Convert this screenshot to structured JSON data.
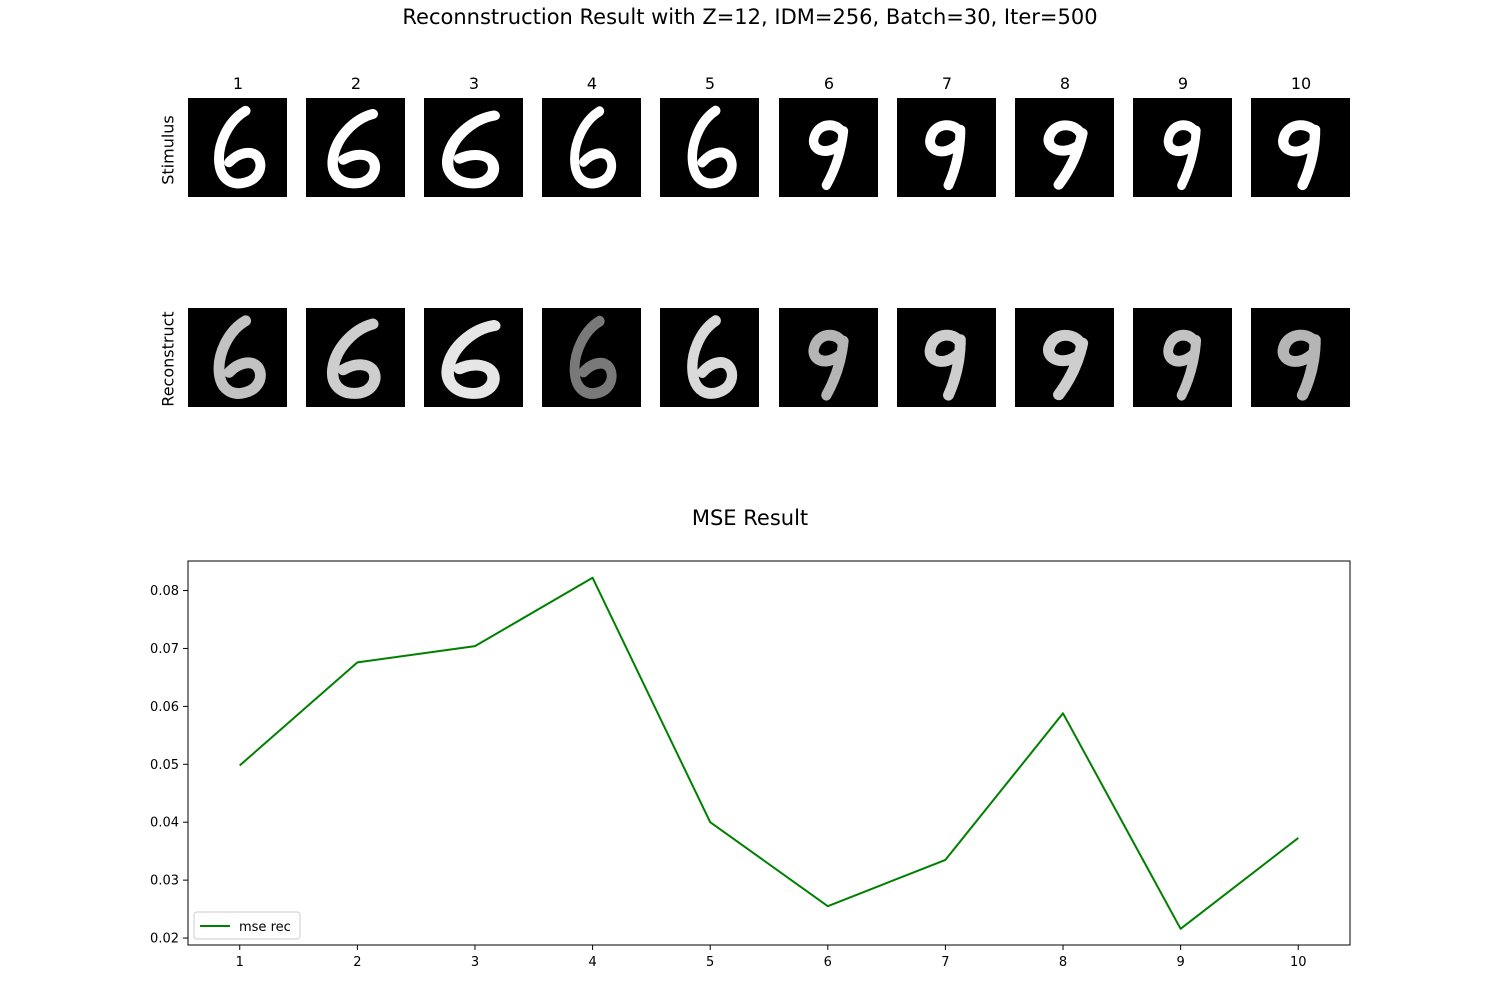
{
  "suptitle": "Reconnstruction Result with Z=12, IDM=256, Batch=30, Iter=500",
  "grid": {
    "columns": [
      "1",
      "2",
      "3",
      "4",
      "5",
      "6",
      "7",
      "8",
      "9",
      "10"
    ],
    "rows": [
      "Stimulus",
      "Reconstruct"
    ],
    "stimulus_digits": [
      "6",
      "6",
      "6",
      "6",
      "6",
      "9",
      "9",
      "9",
      "9",
      "9"
    ],
    "reconstruct_digits": [
      "6",
      "6",
      "6",
      "6",
      "6",
      "9",
      "9",
      "9",
      "9",
      "9"
    ],
    "reconstruct_intensity": [
      0.8,
      0.85,
      0.95,
      0.5,
      0.9,
      0.75,
      0.85,
      0.85,
      0.8,
      0.75
    ]
  },
  "chart_data": {
    "type": "line",
    "title": "MSE Result",
    "xlabel": "",
    "ylabel": "",
    "x": [
      1,
      2,
      3,
      4,
      5,
      6,
      7,
      8,
      9,
      10
    ],
    "xlim": [
      0.56,
      10.44
    ],
    "ylim": [
      0.0188,
      0.0851
    ],
    "yticks": [
      0.02,
      0.03,
      0.04,
      0.05,
      0.06,
      0.07,
      0.08
    ],
    "ytick_labels": [
      "0.02",
      "0.03",
      "0.04",
      "0.05",
      "0.06",
      "0.07",
      "0.08"
    ],
    "xtick_labels": [
      "1",
      "2",
      "3",
      "4",
      "5",
      "6",
      "7",
      "8",
      "9",
      "10"
    ],
    "grid": false,
    "legend_position": "lower-left",
    "series": [
      {
        "name": "mse rec",
        "color": "#008000",
        "values": [
          0.0498,
          0.0676,
          0.0704,
          0.0822,
          0.04,
          0.0255,
          0.0335,
          0.0588,
          0.0216,
          0.0373
        ]
      }
    ]
  }
}
